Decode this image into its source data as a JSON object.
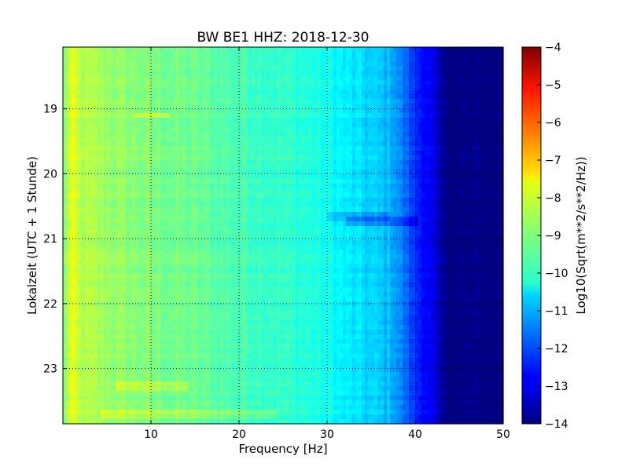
{
  "chart_data": {
    "type": "heatmap",
    "title": "BW BE1 HHZ: 2018-12-30",
    "xlabel": "Frequency [Hz]",
    "ylabel": "Lokalzeit (UTC + 1 Stunde)",
    "xlim": [
      0,
      50
    ],
    "ylim": [
      18.05,
      23.85
    ],
    "y_inverted": true,
    "x_ticks": [
      10,
      20,
      30,
      40,
      50
    ],
    "x_tick_labels": [
      "10",
      "20",
      "30",
      "40",
      "50"
    ],
    "y_ticks": [
      19,
      20,
      21,
      22,
      23
    ],
    "y_tick_labels": [
      "19",
      "20",
      "21",
      "22",
      "23"
    ],
    "grid": true,
    "colorbar": {
      "label": "Log10(Sqrt(m**2/s**2/Hz))",
      "range": [
        -14,
        -4
      ],
      "colormap": "jet",
      "ticks": [
        -4,
        -5,
        -6,
        -7,
        -8,
        -9,
        -10,
        -11,
        -12,
        -13,
        -14
      ],
      "tick_labels": [
        "−4",
        "−5",
        "−6",
        "−7",
        "−8",
        "−9",
        "−10",
        "−11",
        "−12",
        "−13",
        "−14"
      ]
    },
    "spectrum_profile": {
      "frequency_hz": [
        0,
        0.5,
        1,
        2,
        4,
        6,
        8,
        10,
        12,
        15,
        18,
        20,
        24,
        28,
        30,
        32,
        34,
        36,
        37.5,
        39,
        40,
        41,
        42,
        43,
        44,
        50
      ],
      "log10_value": [
        -9.2,
        -8.5,
        -8.0,
        -8.5,
        -8.6,
        -8.8,
        -8.9,
        -9.0,
        -9.1,
        -9.2,
        -9.4,
        -9.5,
        -9.7,
        -9.9,
        -10.1,
        -10.4,
        -10.6,
        -10.8,
        -11.0,
        -11.8,
        -12.3,
        -12.6,
        -13.0,
        -13.8,
        -14.0,
        -14.0
      ]
    },
    "features": [
      {
        "hour": 19.1,
        "f_from": 8,
        "f_to": 12,
        "delta": 0.6
      },
      {
        "hour": 20.65,
        "f_from": 30,
        "f_to": 37,
        "delta": -0.5
      },
      {
        "hour": 20.75,
        "f_from": 32,
        "f_to": 40,
        "delta": -0.6
      },
      {
        "hour": 23.25,
        "f_from": 6,
        "f_to": 14,
        "delta": 0.5
      },
      {
        "hour": 23.7,
        "f_from": 4,
        "f_to": 24,
        "delta": 0.45
      }
    ]
  }
}
